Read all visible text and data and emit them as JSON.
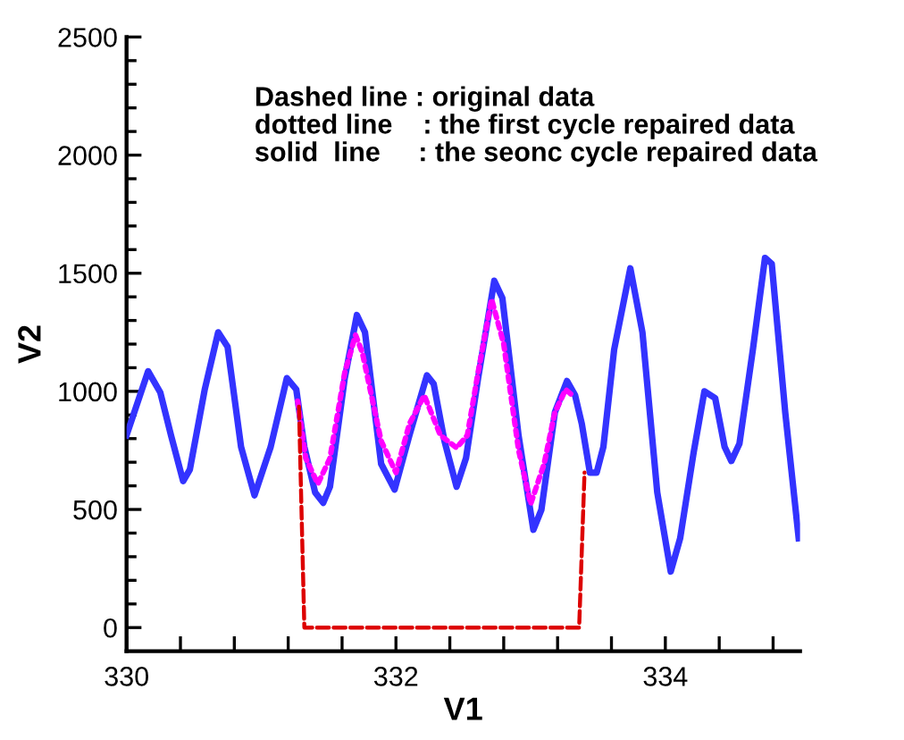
{
  "chart_data": {
    "type": "line",
    "xlabel": "V1",
    "ylabel": "V2",
    "xlim": [
      330,
      335
    ],
    "ylim": [
      -100,
      2500
    ],
    "xticks": [
      330,
      {
        "value": 330.4,
        "label": null
      },
      {
        "value": 330.8,
        "label": null
      },
      {
        "value": 331.2,
        "label": null
      },
      {
        "value": 331.6,
        "label": null
      },
      332,
      {
        "value": 332.4,
        "label": null
      },
      {
        "value": 332.8,
        "label": null
      },
      {
        "value": 333.2,
        "label": null
      },
      {
        "value": 333.6,
        "label": null
      },
      334,
      {
        "value": 334.4,
        "label": null
      },
      {
        "value": 334.8,
        "label": null
      }
    ],
    "yticks": [
      0,
      {
        "value": 100,
        "label": null
      },
      {
        "value": 200,
        "label": null
      },
      {
        "value": 300,
        "label": null
      },
      {
        "value": 400,
        "label": null
      },
      500,
      {
        "value": 600,
        "label": null
      },
      {
        "value": 700,
        "label": null
      },
      {
        "value": 800,
        "label": null
      },
      {
        "value": 900,
        "label": null
      },
      1000,
      {
        "value": 1100,
        "label": null
      },
      {
        "value": 1200,
        "label": null
      },
      {
        "value": 1300,
        "label": null
      },
      {
        "value": 1400,
        "label": null
      },
      1500,
      {
        "value": 1600,
        "label": null
      },
      {
        "value": 1700,
        "label": null
      },
      {
        "value": 1800,
        "label": null
      },
      {
        "value": 1900,
        "label": null
      },
      2000,
      {
        "value": 2100,
        "label": null
      },
      {
        "value": 2200,
        "label": null
      },
      {
        "value": 2300,
        "label": null
      },
      {
        "value": 2400,
        "label": null
      },
      2500
    ],
    "grid": false,
    "legend": false,
    "marker": "none",
    "annotations": [
      "Dashed line : original data",
      "dotted line    : the first cycle repaired data",
      "solid  line     : the seonc cycle repaired data"
    ],
    "series": [
      {
        "color": "#dd0000",
        "line_style": "dashed",
        "x": [
          331.28,
          331.32,
          333.36,
          333.4
        ],
        "values": [
          935,
          0,
          0,
          656
        ]
      },
      {
        "color": "#ff00ff",
        "line_style": "dotted",
        "x": [
          331.27,
          331.33,
          331.42,
          331.51,
          331.62,
          331.7,
          331.75,
          331.89,
          332.0,
          332.1,
          332.21,
          332.33,
          332.45,
          332.53,
          332.61,
          332.71,
          332.8,
          332.91,
          333.0,
          333.1,
          333.18,
          333.26,
          333.31
        ],
        "values": [
          959,
          717,
          608,
          717,
          1080,
          1238,
          1165,
          790,
          656,
          862,
          983,
          814,
          761,
          814,
          1080,
          1390,
          1201,
          753,
          523,
          693,
          911,
          1008,
          983
        ]
      },
      {
        "color": "#3333ff",
        "line_style": "solid",
        "x": [
          330.0,
          330.16,
          330.25,
          330.33,
          330.42,
          330.47,
          330.58,
          330.68,
          330.75,
          330.85,
          330.95,
          331.07,
          331.19,
          331.26,
          331.32,
          331.4,
          331.46,
          331.51,
          331.62,
          331.71,
          331.77,
          331.89,
          331.99,
          332.1,
          332.23,
          332.28,
          332.36,
          332.45,
          332.52,
          332.61,
          332.73,
          332.79,
          332.91,
          333.02,
          333.08,
          333.18,
          333.27,
          333.33,
          333.38,
          333.44,
          333.49,
          333.54,
          333.62,
          333.74,
          333.83,
          333.94,
          334.04,
          334.11,
          334.21,
          334.29,
          334.37,
          334.44,
          334.49,
          334.55,
          334.65,
          334.74,
          334.79,
          334.89,
          334.99
        ],
        "values": [
          814,
          1085,
          996,
          814,
          620,
          669,
          1007,
          1250,
          1189,
          765,
          560,
          765,
          1056,
          1008,
          765,
          572,
          528,
          596,
          1056,
          1323,
          1250,
          693,
          584,
          814,
          1068,
          1032,
          790,
          596,
          717,
          1056,
          1468,
          1395,
          814,
          414,
          499,
          911,
          1044,
          983,
          862,
          656,
          656,
          765,
          1177,
          1521,
          1250,
          572,
          237,
          378,
          741,
          1000,
          971,
          765,
          705,
          778,
          1177,
          1565,
          1540,
          911,
          378
        ]
      }
    ]
  }
}
